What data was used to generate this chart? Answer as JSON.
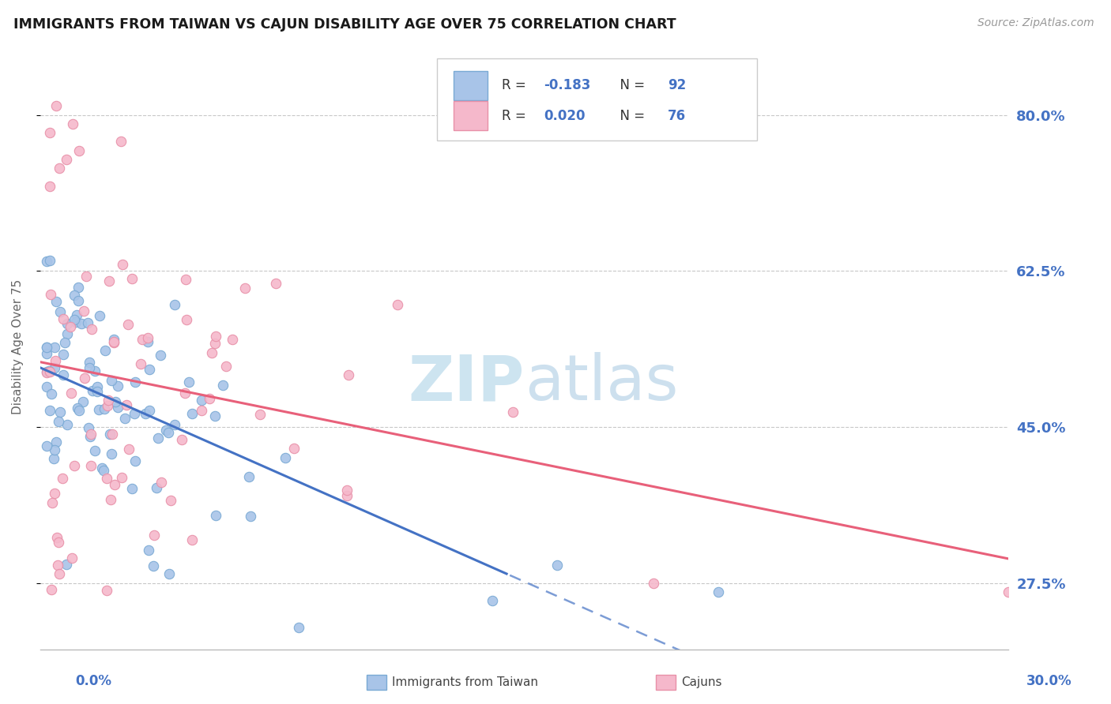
{
  "title": "IMMIGRANTS FROM TAIWAN VS CAJUN DISABILITY AGE OVER 75 CORRELATION CHART",
  "source": "Source: ZipAtlas.com",
  "ylabel": "Disability Age Over 75",
  "ytick_labels": [
    "27.5%",
    "45.0%",
    "62.5%",
    "80.0%"
  ],
  "ytick_values": [
    0.275,
    0.45,
    0.625,
    0.8
  ],
  "xlim": [
    0.0,
    0.3
  ],
  "ylim": [
    0.2,
    0.88
  ],
  "legend_label1": "Immigrants from Taiwan",
  "legend_label2": "Cajuns",
  "R1": -0.183,
  "N1": 92,
  "R2": 0.02,
  "N2": 76,
  "color_taiwan_fill": "#a8c4e8",
  "color_taiwan_edge": "#7aaad4",
  "color_cajun_fill": "#f5b8cb",
  "color_cajun_edge": "#e890a8",
  "color_trend_taiwan": "#4472c4",
  "color_trend_cajun": "#e8607a",
  "watermark_color": "#cde4f0",
  "grid_color": "#c8c8c8",
  "axis_color": "#bbbbbb",
  "label_color": "#4472c4",
  "title_color": "#1a1a1a",
  "ylabel_color": "#666666",
  "legend_text_R_color": "#4472c4",
  "legend_text_N_color": "#333333"
}
